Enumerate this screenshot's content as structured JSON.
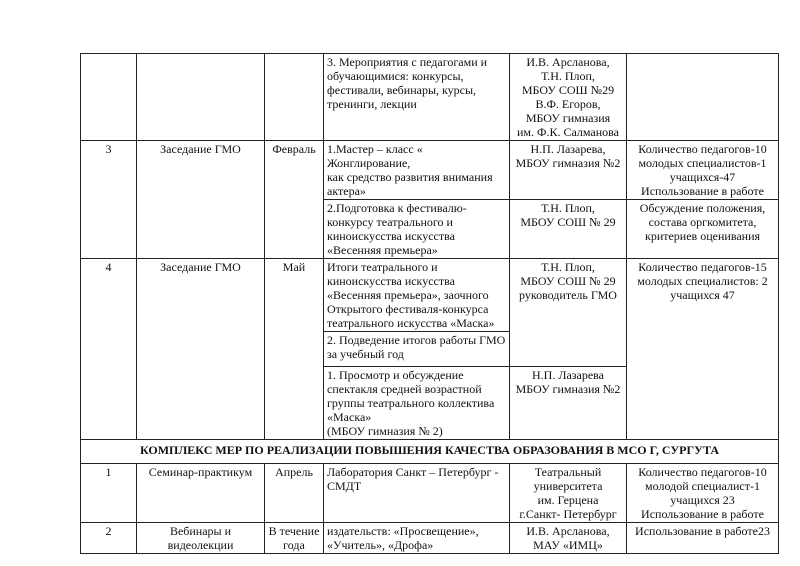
{
  "rows": {
    "r0": {
      "activity": "3.  Мероприятия с педагогами и\nобучающимися: конкурсы,\nфестивали, вебинары, курсы,\nтренинги, лекции",
      "responsible": "И.В. Арсланова,\nТ.Н. Плоп,\nМБОУ СОШ №29\nВ.Ф. Егоров,\nМБОУ гимназия\nим. Ф.К. Салманова"
    },
    "r3": {
      "num": "3",
      "form": "Заседание ГМО",
      "month": "Февраль",
      "a1": "1.Мастер – класс « Жонглирование,\nкак средство развития внимания\nактера»",
      "resp1": "Н.П. Лазарева,\nМБОУ гимназия №2",
      "res1": "Количество педагогов-10\nмолодых специалистов-1\nучащихся-47\nИспользование в работе",
      "a2": "2.Подготовка к фестивалю-\nконкурсу театрального и\nкиноискусства искусства\n«Весенняя премьера»",
      "resp2": "Т.Н. Плоп,\nМБОУ СОШ № 29",
      "res2": "Обсуждение положения,\nсостава оргкомитета,\nкритериев оценивания"
    },
    "r4": {
      "num": "4",
      "form": "Заседание ГМО",
      "month": "Май",
      "a1": "Итоги театрального и\nкиноискусства искусства\n«Весенняя премьера», заочного\nОткрытого фестиваля-конкурса\nтеатрального искусства «Маска»",
      "resp1": "Т.Н. Плоп,\nМБОУ СОШ № 29\nруководитель ГМО",
      "res1": "Количество педагогов-15\nмолодых специалистов: 2\nучащихся 47",
      "a2": "2. Подведение итогов работы ГМО\nза учебный год",
      "a3": "1. Просмотр и обсуждение\nспектакля средней возрастной\nгруппы театрального коллектива\n«Маска»\n(МБОУ гимназия № 2)",
      "resp3": "Н.П. Лазарева\nМБОУ гимназия №2"
    },
    "section": "КОМПЛЕКС МЕР ПО РЕАЛИЗАЦИИ ПОВЫШЕНИЯ КАЧЕСТВА ОБРАЗОВАНИЯ В МСО Г, СУРГУТА",
    "s1": {
      "num": "1",
      "form": "Семинар-практикум",
      "month": "Апрель",
      "activity": "Лаборатория Санкт – Петербург -\nСМДТ",
      "responsible": "Театральный\nуниверситета\nим. Герцена\nг.Санкт- Петербург",
      "result": "Количество педагогов-10\nмолодой специалист-1\nучащихся 23\nИспользование в работе"
    },
    "s2": {
      "num": "2",
      "form": "Вебинары и\nвидеолекции",
      "month": "В течение\nгода",
      "activity": "издательств: «Просвещение»,\n«Учитель», «Дрофа»",
      "responsible": "И.В. Арсланова,\nМАУ «ИМЦ»",
      "result": "Использование в работе23"
    }
  }
}
